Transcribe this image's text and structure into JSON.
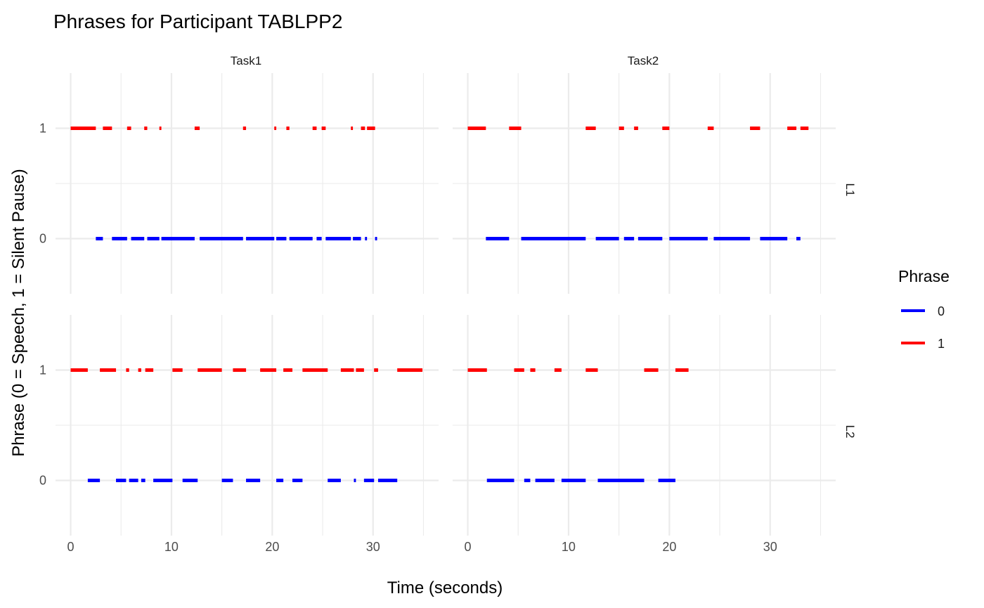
{
  "chart_data": {
    "type": "line",
    "title": "Phrases for Participant TABLPP2",
    "xlabel": "Time (seconds)",
    "ylabel": "Phrase (0 = Speech, 1 = Silent Pause)",
    "xlim": [
      -1.5,
      36.5
    ],
    "ylim": [
      -0.5,
      1.5
    ],
    "x_ticks": [
      "0",
      "10",
      "20",
      "30"
    ],
    "y_ticks": [
      "0",
      "1"
    ],
    "grid": true,
    "legend": {
      "title": "Phrase",
      "placement": "right",
      "entries": [
        {
          "label": "0",
          "color": "#0000FF"
        },
        {
          "label": "1",
          "color": "#FF0000"
        }
      ]
    },
    "columns": [
      "Task1",
      "Task2"
    ],
    "rows": [
      "L1",
      "L2"
    ],
    "panels": [
      {
        "task": "Task1",
        "language": "L1",
        "speech": [
          [
            2.5,
            3.2
          ],
          [
            4.1,
            5.6
          ],
          [
            6.0,
            7.3
          ],
          [
            7.6,
            8.8
          ],
          [
            9.0,
            12.3
          ],
          [
            12.8,
            17.1
          ],
          [
            17.4,
            20.2
          ],
          [
            20.4,
            21.4
          ],
          [
            21.7,
            24.0
          ],
          [
            24.4,
            24.9
          ],
          [
            25.3,
            27.8
          ],
          [
            28.0,
            28.8
          ],
          [
            29.2,
            29.4
          ],
          [
            30.2,
            30.4
          ]
        ],
        "pause": [
          [
            0.0,
            2.5
          ],
          [
            3.2,
            4.1
          ],
          [
            5.6,
            6.0
          ],
          [
            7.3,
            7.6
          ],
          [
            8.8,
            9.0
          ],
          [
            12.3,
            12.8
          ],
          [
            17.1,
            17.4
          ],
          [
            20.2,
            20.4
          ],
          [
            21.4,
            21.7
          ],
          [
            24.0,
            24.4
          ],
          [
            24.9,
            25.3
          ],
          [
            27.8,
            28.0
          ],
          [
            28.8,
            29.2
          ],
          [
            29.4,
            30.2
          ]
        ]
      },
      {
        "task": "Task2",
        "language": "L1",
        "speech": [
          [
            1.8,
            4.1
          ],
          [
            5.3,
            11.7
          ],
          [
            12.7,
            15.0
          ],
          [
            15.5,
            16.5
          ],
          [
            16.9,
            19.3
          ],
          [
            20.0,
            23.8
          ],
          [
            24.4,
            28.0
          ],
          [
            29.0,
            31.7
          ],
          [
            32.6,
            33.0
          ]
        ],
        "pause": [
          [
            0.0,
            1.8
          ],
          [
            4.1,
            5.3
          ],
          [
            11.7,
            12.7
          ],
          [
            15.0,
            15.5
          ],
          [
            16.5,
            16.9
          ],
          [
            19.3,
            20.0
          ],
          [
            23.8,
            24.4
          ],
          [
            28.0,
            29.0
          ],
          [
            31.7,
            32.6
          ],
          [
            33.0,
            33.8
          ]
        ]
      },
      {
        "task": "Task1",
        "language": "L2",
        "speech": [
          [
            1.7,
            2.9
          ],
          [
            4.5,
            5.5
          ],
          [
            5.8,
            6.7
          ],
          [
            7.0,
            7.4
          ],
          [
            8.2,
            10.1
          ],
          [
            11.1,
            12.6
          ],
          [
            15.0,
            16.1
          ],
          [
            17.4,
            18.8
          ],
          [
            20.4,
            21.1
          ],
          [
            22.0,
            23.0
          ],
          [
            25.5,
            26.8
          ],
          [
            28.1,
            28.3
          ],
          [
            29.1,
            30.1
          ],
          [
            30.5,
            32.4
          ]
        ],
        "pause": [
          [
            0.0,
            1.7
          ],
          [
            2.9,
            4.5
          ],
          [
            5.5,
            5.8
          ],
          [
            6.7,
            7.0
          ],
          [
            7.4,
            8.2
          ],
          [
            10.1,
            11.1
          ],
          [
            12.6,
            15.0
          ],
          [
            16.1,
            17.4
          ],
          [
            18.8,
            20.4
          ],
          [
            21.1,
            22.0
          ],
          [
            23.0,
            25.5
          ],
          [
            26.8,
            28.1
          ],
          [
            28.3,
            29.1
          ],
          [
            30.1,
            30.5
          ],
          [
            32.4,
            34.9
          ]
        ]
      },
      {
        "task": "Task2",
        "language": "L2",
        "speech": [
          [
            1.9,
            4.6
          ],
          [
            5.6,
            6.2
          ],
          [
            6.7,
            8.6
          ],
          [
            9.3,
            11.7
          ],
          [
            12.9,
            17.5
          ],
          [
            18.9,
            20.6
          ]
        ],
        "pause": [
          [
            0.0,
            1.9
          ],
          [
            4.6,
            5.6
          ],
          [
            6.2,
            6.7
          ],
          [
            8.6,
            9.3
          ],
          [
            11.7,
            12.9
          ],
          [
            17.5,
            18.9
          ],
          [
            20.6,
            21.9
          ]
        ]
      }
    ]
  }
}
